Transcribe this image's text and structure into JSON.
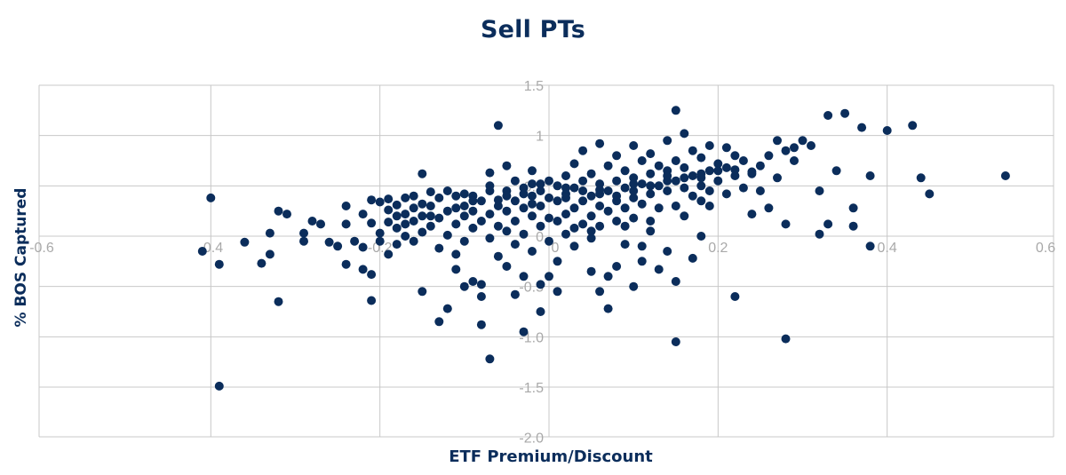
{
  "colors": {
    "marker": "#0b2d5b",
    "grid": "#c8c8c8",
    "tick_text": "#a9a9a9",
    "title": "#0b2d5b"
  },
  "chart_data": {
    "type": "scatter",
    "title": "Sell PTs",
    "xlabel": "ETF Premium/Discount",
    "ylabel": "% BOS Captured",
    "xlim": [
      -0.6,
      0.6
    ],
    "ylim": [
      -2.0,
      1.5
    ],
    "x_ticks": [
      "-0.6",
      "-0.4",
      "-0.2",
      "0",
      "0.2",
      "0.4",
      "0.6"
    ],
    "y_ticks": [
      "1.5",
      "1",
      "0.5",
      "0",
      "-0.5",
      "-1.0",
      "-1.5",
      "-2.0"
    ],
    "grid": true,
    "legend": "none",
    "series": [
      {
        "points": [
          [
            -0.41,
            -0.15
          ],
          [
            -0.4,
            0.38
          ],
          [
            -0.39,
            -0.28
          ],
          [
            -0.39,
            -1.49
          ],
          [
            -0.36,
            -0.06
          ],
          [
            -0.34,
            -0.27
          ],
          [
            -0.33,
            0.03
          ],
          [
            -0.33,
            -0.18
          ],
          [
            -0.32,
            -0.65
          ],
          [
            -0.32,
            0.25
          ],
          [
            -0.31,
            0.22
          ],
          [
            -0.29,
            0.03
          ],
          [
            -0.29,
            -0.05
          ],
          [
            -0.28,
            0.15
          ],
          [
            -0.27,
            0.12
          ],
          [
            -0.26,
            -0.06
          ],
          [
            -0.25,
            -0.1
          ],
          [
            -0.24,
            0.12
          ],
          [
            -0.24,
            -0.28
          ],
          [
            -0.24,
            0.3
          ],
          [
            -0.23,
            -0.05
          ],
          [
            -0.22,
            -0.11
          ],
          [
            -0.22,
            0.22
          ],
          [
            -0.22,
            -0.33
          ],
          [
            -0.21,
            0.36
          ],
          [
            -0.21,
            0.13
          ],
          [
            -0.21,
            -0.38
          ],
          [
            -0.21,
            -0.64
          ],
          [
            -0.2,
            0.34
          ],
          [
            -0.2,
            0.03
          ],
          [
            -0.2,
            -0.05
          ],
          [
            -0.19,
            0.26
          ],
          [
            -0.19,
            0.14
          ],
          [
            -0.19,
            -0.18
          ],
          [
            -0.19,
            0.37
          ],
          [
            -0.18,
            0.31
          ],
          [
            -0.18,
            0.08
          ],
          [
            -0.18,
            -0.08
          ],
          [
            -0.17,
            0.22
          ],
          [
            -0.17,
            0.0
          ],
          [
            -0.17,
            0.38
          ],
          [
            -0.16,
            0.15
          ],
          [
            -0.16,
            -0.05
          ],
          [
            -0.16,
            0.28
          ],
          [
            -0.15,
            0.62
          ],
          [
            -0.15,
            0.2
          ],
          [
            -0.15,
            0.04
          ],
          [
            -0.14,
            0.44
          ],
          [
            -0.14,
            0.3
          ],
          [
            -0.14,
            0.1
          ],
          [
            -0.13,
            -0.12
          ],
          [
            -0.13,
            0.38
          ],
          [
            -0.13,
            0.18
          ],
          [
            -0.12,
            0.25
          ],
          [
            -0.12,
            0.01
          ],
          [
            -0.12,
            -0.72
          ],
          [
            -0.11,
            0.4
          ],
          [
            -0.11,
            0.12
          ],
          [
            -0.11,
            -0.18
          ],
          [
            -0.1,
            0.3
          ],
          [
            -0.1,
            0.2
          ],
          [
            -0.1,
            -0.05
          ],
          [
            -0.1,
            -0.5
          ],
          [
            -0.09,
            0.4
          ],
          [
            -0.09,
            0.08
          ],
          [
            -0.09,
            0.25
          ],
          [
            -0.08,
            -0.6
          ],
          [
            -0.08,
            -0.88
          ],
          [
            -0.08,
            0.35
          ],
          [
            -0.08,
            0.15
          ],
          [
            -0.07,
            0.63
          ],
          [
            -0.07,
            0.45
          ],
          [
            -0.07,
            0.22
          ],
          [
            -0.07,
            -0.02
          ],
          [
            -0.06,
            0.3
          ],
          [
            -0.06,
            0.1
          ],
          [
            -0.06,
            -0.2
          ],
          [
            -0.05,
            0.45
          ],
          [
            -0.05,
            0.25
          ],
          [
            -0.05,
            0.05
          ],
          [
            -0.05,
            -0.3
          ],
          [
            -0.04,
            0.55
          ],
          [
            -0.04,
            0.35
          ],
          [
            -0.04,
            0.15
          ],
          [
            -0.04,
            -0.08
          ],
          [
            -0.03,
            0.48
          ],
          [
            -0.03,
            0.28
          ],
          [
            -0.03,
            0.02
          ],
          [
            -0.03,
            -0.4
          ],
          [
            -0.02,
            0.52
          ],
          [
            -0.02,
            0.4
          ],
          [
            -0.02,
            0.2
          ],
          [
            -0.02,
            -0.15
          ],
          [
            -0.01,
            0.45
          ],
          [
            -0.01,
            0.3
          ],
          [
            -0.01,
            0.1
          ],
          [
            -0.01,
            -0.48
          ],
          [
            0.0,
            0.55
          ],
          [
            0.0,
            0.38
          ],
          [
            0.0,
            0.18
          ],
          [
            0.0,
            -0.05
          ],
          [
            -0.06,
            1.1
          ],
          [
            -0.05,
            0.7
          ],
          [
            -0.04,
            -0.58
          ],
          [
            -0.03,
            -0.95
          ],
          [
            -0.02,
            0.65
          ],
          [
            -0.01,
            -0.75
          ],
          [
            -0.07,
            -1.22
          ],
          [
            -0.09,
            -0.45
          ],
          [
            -0.11,
            -0.33
          ],
          [
            -0.08,
            -0.48
          ],
          [
            -0.13,
            -0.85
          ],
          [
            -0.15,
            -0.55
          ],
          [
            0.01,
            0.5
          ],
          [
            0.01,
            0.35
          ],
          [
            0.01,
            0.15
          ],
          [
            0.01,
            -0.25
          ],
          [
            0.02,
            0.6
          ],
          [
            0.02,
            0.42
          ],
          [
            0.02,
            0.22
          ],
          [
            0.02,
            0.02
          ],
          [
            0.03,
            0.72
          ],
          [
            0.03,
            0.48
          ],
          [
            0.03,
            0.28
          ],
          [
            0.03,
            0.08
          ],
          [
            0.04,
            0.85
          ],
          [
            0.04,
            0.55
          ],
          [
            0.04,
            0.35
          ],
          [
            0.04,
            0.12
          ],
          [
            0.05,
            0.62
          ],
          [
            0.05,
            0.4
          ],
          [
            0.05,
            0.2
          ],
          [
            0.05,
            -0.02
          ],
          [
            0.06,
            0.92
          ],
          [
            0.06,
            0.52
          ],
          [
            0.06,
            0.3
          ],
          [
            0.06,
            0.1
          ],
          [
            0.07,
            0.7
          ],
          [
            0.07,
            0.45
          ],
          [
            0.07,
            0.25
          ],
          [
            0.07,
            -0.4
          ],
          [
            0.08,
            0.8
          ],
          [
            0.08,
            0.55
          ],
          [
            0.08,
            0.35
          ],
          [
            0.08,
            0.15
          ],
          [
            0.09,
            0.65
          ],
          [
            0.09,
            0.48
          ],
          [
            0.09,
            0.28
          ],
          [
            0.09,
            -0.08
          ],
          [
            0.1,
            0.9
          ],
          [
            0.1,
            0.58
          ],
          [
            0.1,
            0.38
          ],
          [
            0.1,
            0.18
          ],
          [
            0.11,
            0.75
          ],
          [
            0.11,
            0.52
          ],
          [
            0.11,
            0.32
          ],
          [
            0.11,
            -0.25
          ],
          [
            0.12,
            0.82
          ],
          [
            0.12,
            0.62
          ],
          [
            0.12,
            0.42
          ],
          [
            0.12,
            0.05
          ],
          [
            0.13,
            0.7
          ],
          [
            0.13,
            0.5
          ],
          [
            0.13,
            0.28
          ],
          [
            0.14,
            0.95
          ],
          [
            0.14,
            0.65
          ],
          [
            0.14,
            0.45
          ],
          [
            0.14,
            -0.15
          ],
          [
            0.15,
            1.25
          ],
          [
            0.15,
            0.75
          ],
          [
            0.15,
            0.55
          ],
          [
            0.15,
            0.3
          ],
          [
            0.16,
            1.02
          ],
          [
            0.16,
            0.68
          ],
          [
            0.16,
            0.48
          ],
          [
            0.16,
            0.2
          ],
          [
            0.17,
            0.85
          ],
          [
            0.17,
            0.6
          ],
          [
            0.17,
            0.4
          ],
          [
            0.18,
            0.78
          ],
          [
            0.18,
            0.58
          ],
          [
            0.18,
            0.35
          ],
          [
            0.19,
            0.9
          ],
          [
            0.19,
            0.65
          ],
          [
            0.19,
            0.45
          ],
          [
            0.2,
            0.72
          ],
          [
            0.2,
            0.55
          ],
          [
            0.21,
            0.88
          ],
          [
            0.21,
            0.68
          ],
          [
            0.21,
            0.42
          ],
          [
            0.22,
            0.8
          ],
          [
            0.22,
            0.6
          ],
          [
            0.23,
            0.75
          ],
          [
            0.23,
            0.48
          ],
          [
            0.24,
            0.62
          ],
          [
            0.24,
            0.22
          ],
          [
            0.25,
            0.7
          ],
          [
            0.25,
            0.45
          ],
          [
            0.26,
            0.8
          ],
          [
            0.26,
            0.28
          ],
          [
            0.27,
            0.95
          ],
          [
            0.27,
            0.58
          ],
          [
            0.28,
            0.85
          ],
          [
            0.28,
            0.12
          ],
          [
            0.29,
            0.88
          ],
          [
            0.29,
            0.75
          ],
          [
            0.3,
            0.95
          ],
          [
            0.31,
            0.9
          ],
          [
            0.32,
            0.45
          ],
          [
            0.32,
            0.02
          ],
          [
            0.33,
            1.2
          ],
          [
            0.33,
            0.12
          ],
          [
            0.34,
            0.65
          ],
          [
            0.35,
            1.22
          ],
          [
            0.36,
            0.28
          ],
          [
            0.36,
            0.1
          ],
          [
            0.37,
            1.08
          ],
          [
            0.38,
            0.6
          ],
          [
            0.38,
            -0.1
          ],
          [
            0.4,
            1.05
          ],
          [
            0.43,
            1.1
          ],
          [
            0.44,
            0.58
          ],
          [
            0.45,
            0.42
          ],
          [
            0.54,
            0.6
          ],
          [
            0.05,
            -0.35
          ],
          [
            0.06,
            -0.55
          ],
          [
            0.07,
            -0.72
          ],
          [
            0.08,
            -0.3
          ],
          [
            0.09,
            0.1
          ],
          [
            0.1,
            -0.5
          ],
          [
            0.11,
            -0.1
          ],
          [
            0.13,
            -0.33
          ],
          [
            0.15,
            -1.05
          ],
          [
            0.15,
            -0.45
          ],
          [
            0.17,
            -0.22
          ],
          [
            0.18,
            0.0
          ],
          [
            0.22,
            -0.6
          ],
          [
            0.28,
            -1.02
          ],
          [
            0.0,
            -0.4
          ],
          [
            0.01,
            -0.55
          ],
          [
            0.05,
            0.05
          ],
          [
            0.03,
            -0.1
          ],
          [
            0.12,
            0.15
          ],
          [
            0.19,
            0.3
          ],
          [
            -0.15,
            0.32
          ],
          [
            -0.12,
            0.45
          ],
          [
            -0.14,
            0.2
          ],
          [
            -0.16,
            0.4
          ],
          [
            -0.18,
            0.2
          ],
          [
            -0.17,
            0.12
          ],
          [
            -0.11,
            0.28
          ],
          [
            -0.09,
            0.35
          ],
          [
            -0.07,
            0.5
          ],
          [
            -0.05,
            0.4
          ],
          [
            -0.03,
            0.42
          ],
          [
            -0.01,
            0.52
          ],
          [
            0.02,
            0.48
          ],
          [
            0.04,
            0.45
          ],
          [
            0.06,
            0.42
          ],
          [
            0.08,
            0.4
          ],
          [
            0.1,
            0.45
          ],
          [
            0.12,
            0.5
          ],
          [
            0.14,
            0.55
          ],
          [
            0.16,
            0.58
          ],
          [
            0.18,
            0.62
          ],
          [
            0.2,
            0.65
          ],
          [
            0.22,
            0.66
          ],
          [
            0.24,
            0.64
          ],
          [
            -0.1,
            0.42
          ],
          [
            -0.06,
            0.36
          ],
          [
            -0.02,
            0.32
          ],
          [
            0.02,
            0.38
          ],
          [
            0.06,
            0.46
          ],
          [
            0.1,
            0.52
          ],
          [
            0.14,
            0.6
          ],
          [
            0.18,
            0.5
          ]
        ]
      }
    ]
  }
}
